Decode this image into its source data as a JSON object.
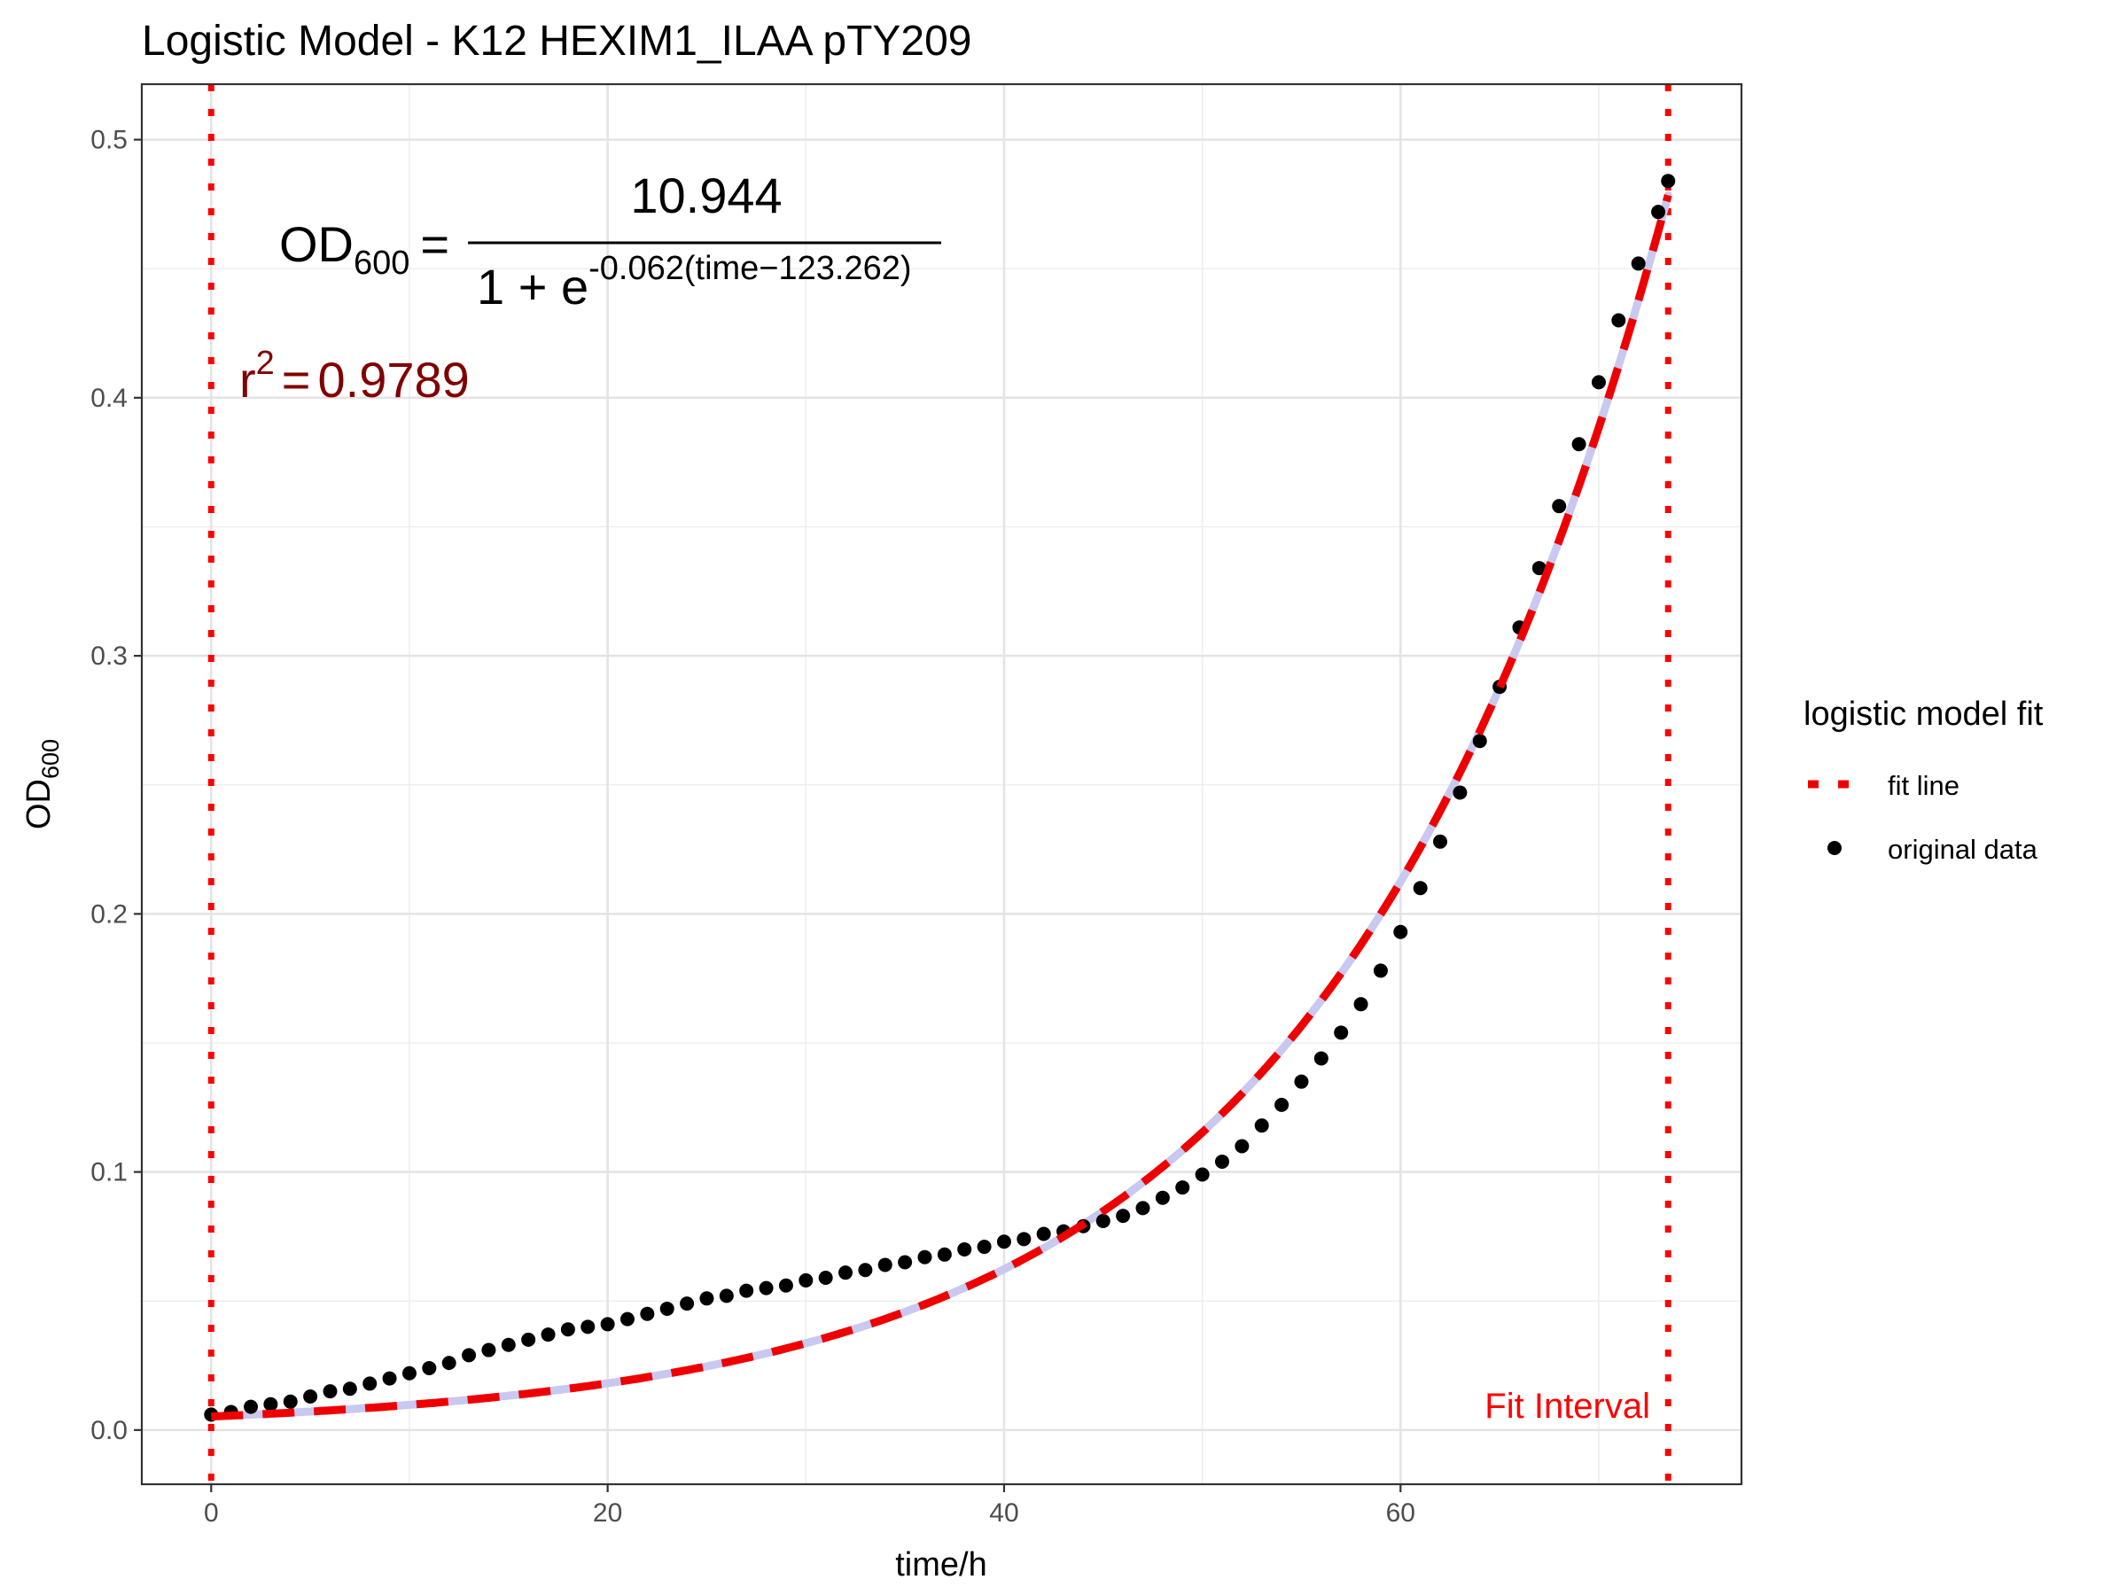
{
  "chart_data": {
    "type": "scatter",
    "title": "Logistic Model -  K12 HEXIM1_ILAA pTY209",
    "xlabel": "time/h",
    "ylabel_main": "OD",
    "ylabel_sub": "600",
    "xlim": [
      -3.5,
      77.2
    ],
    "ylim": [
      -0.021,
      0.5215
    ],
    "xticks": [
      0,
      20,
      40,
      60
    ],
    "xtick_labels": [
      "0",
      "20",
      "40",
      "60"
    ],
    "yticks": [
      0,
      0.1,
      0.2,
      0.3,
      0.4,
      0.5
    ],
    "ytick_labels": [
      "0.0",
      "0.1",
      "0.2",
      "0.3",
      "0.4",
      "0.5"
    ],
    "grid": true,
    "legend": {
      "title": "logistic model fit",
      "placement": "right",
      "items": [
        {
          "label": "fit line",
          "kind": "dashed-line",
          "color": "#ee0000"
        },
        {
          "label": "original data",
          "kind": "point",
          "color": "#000000"
        }
      ]
    },
    "fit_interval": {
      "start": 0,
      "end": 73.5,
      "label": "Fit Interval",
      "color": "#ff0000"
    },
    "fit_model": {
      "K": 10.944,
      "r": 0.062,
      "t0": 123.262
    },
    "equation": {
      "lhs": "OD",
      "lhs_sub": "600",
      "eq": "=",
      "numerator": "10.944",
      "denominator_base": "1 + e",
      "denominator_exp": "-0.062(time−123.262)"
    },
    "r_squared": {
      "symbol": "r",
      "power": "2",
      "eq": "=",
      "value": "0.9789"
    },
    "series": [
      {
        "name": "original data",
        "style": "points",
        "color": "#000000",
        "points": [
          [
            0,
            0.006
          ],
          [
            1,
            0.007
          ],
          [
            2,
            0.009
          ],
          [
            3,
            0.01
          ],
          [
            4,
            0.011
          ],
          [
            5,
            0.013
          ],
          [
            6,
            0.015
          ],
          [
            7,
            0.016
          ],
          [
            8,
            0.018
          ],
          [
            9,
            0.02
          ],
          [
            10,
            0.022
          ],
          [
            11,
            0.024
          ],
          [
            12,
            0.026
          ],
          [
            13,
            0.029
          ],
          [
            14,
            0.031
          ],
          [
            15,
            0.033
          ],
          [
            16,
            0.035
          ],
          [
            17,
            0.037
          ],
          [
            18,
            0.039
          ],
          [
            19,
            0.04
          ],
          [
            20,
            0.041
          ],
          [
            21,
            0.043
          ],
          [
            22,
            0.045
          ],
          [
            23,
            0.047
          ],
          [
            24,
            0.049
          ],
          [
            25,
            0.051
          ],
          [
            26,
            0.052
          ],
          [
            27,
            0.054
          ],
          [
            28,
            0.055
          ],
          [
            29,
            0.056
          ],
          [
            30,
            0.058
          ],
          [
            31,
            0.059
          ],
          [
            32,
            0.061
          ],
          [
            33,
            0.062
          ],
          [
            34,
            0.064
          ],
          [
            35,
            0.065
          ],
          [
            36,
            0.067
          ],
          [
            37,
            0.068
          ],
          [
            38,
            0.07
          ],
          [
            39,
            0.071
          ],
          [
            40,
            0.073
          ],
          [
            41,
            0.074
          ],
          [
            42,
            0.076
          ],
          [
            43,
            0.077
          ],
          [
            44,
            0.079
          ],
          [
            45,
            0.081
          ],
          [
            46,
            0.083
          ],
          [
            47,
            0.086
          ],
          [
            48,
            0.09
          ],
          [
            49,
            0.094
          ],
          [
            50,
            0.099
          ],
          [
            51,
            0.104
          ],
          [
            52,
            0.11
          ],
          [
            53,
            0.118
          ],
          [
            54,
            0.126
          ],
          [
            55,
            0.135
          ],
          [
            56,
            0.144
          ],
          [
            57,
            0.154
          ],
          [
            58,
            0.165
          ],
          [
            59,
            0.178
          ],
          [
            60,
            0.193
          ],
          [
            61,
            0.21
          ],
          [
            62,
            0.228
          ],
          [
            63,
            0.247
          ],
          [
            64,
            0.267
          ],
          [
            65,
            0.288
          ],
          [
            66,
            0.311
          ],
          [
            67,
            0.334
          ],
          [
            68,
            0.358
          ],
          [
            69,
            0.382
          ],
          [
            70,
            0.406
          ],
          [
            71,
            0.43
          ],
          [
            72,
            0.452
          ],
          [
            73,
            0.472
          ],
          [
            73.5,
            0.484
          ]
        ]
      },
      {
        "name": "fit line",
        "style": "dashed-line",
        "color": "#ee0000",
        "generated_from": "fit_model",
        "x_range": [
          0,
          73.5
        ]
      }
    ]
  }
}
